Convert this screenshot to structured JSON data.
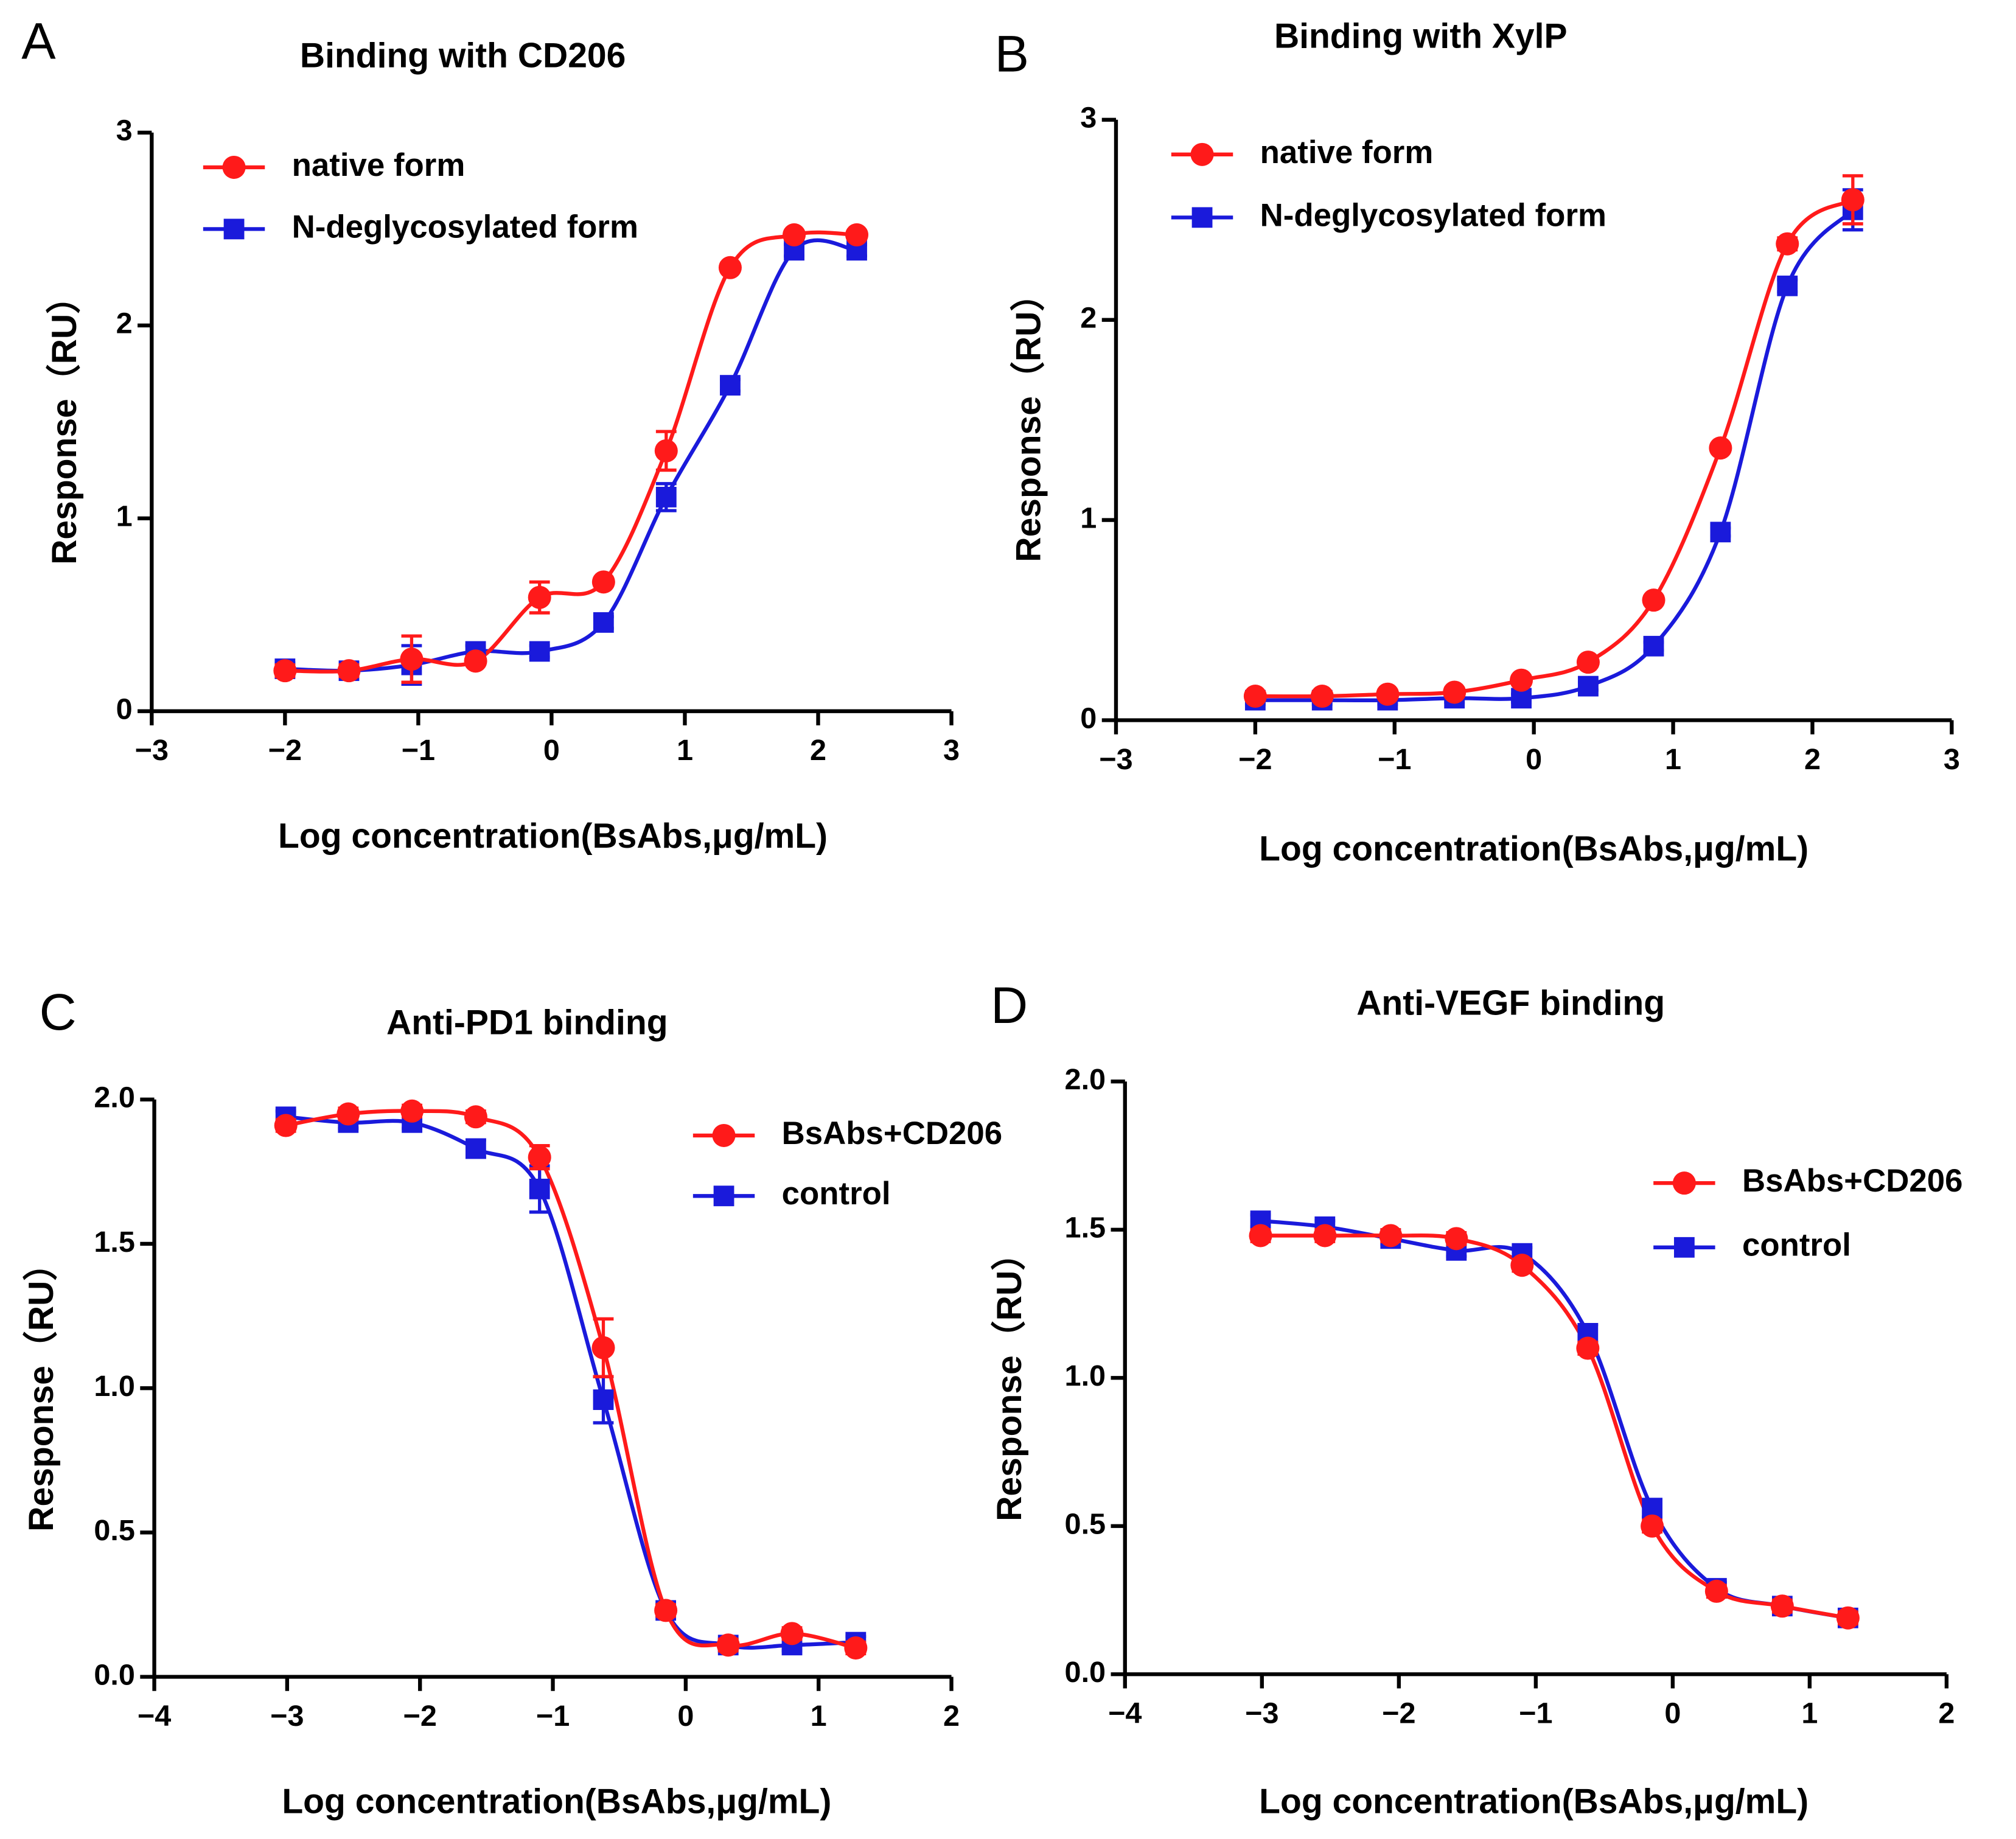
{
  "chart_data": [
    {
      "type": "line",
      "panel": "A",
      "title": "Binding with CD206",
      "x_label": "Log concentration(BsAbs,μg/mL)",
      "y_label": "Response（RU）",
      "x": [
        -2.0,
        -1.52,
        -1.05,
        -0.57,
        -0.09,
        0.39,
        0.86,
        1.34,
        1.82,
        2.29
      ],
      "series": [
        {
          "name": "native form",
          "color": "#ff1a1a",
          "marker": "circle",
          "values": [
            0.21,
            0.21,
            0.27,
            0.26,
            0.59,
            0.67,
            1.35,
            2.3,
            2.47,
            2.47
          ],
          "errors": [
            0.03,
            0.03,
            0.12,
            0.02,
            0.08,
            0.02,
            0.1,
            0.02,
            0.02,
            0.02
          ]
        },
        {
          "name": "N-deglycosylated form",
          "color": "#1a1adb",
          "marker": "square",
          "values": [
            0.22,
            0.21,
            0.24,
            0.31,
            0.31,
            0.46,
            1.11,
            1.69,
            2.39,
            2.39
          ],
          "errors": [
            0.03,
            0.03,
            0.1,
            0.03,
            0.03,
            0.03,
            0.07,
            0.03,
            0.03,
            0.03
          ]
        }
      ],
      "xlim": [
        -3,
        3
      ],
      "xticks": [
        {
          "value": -3,
          "label": "−3"
        },
        {
          "value": -2,
          "label": "−2"
        },
        {
          "value": -1,
          "label": "−1"
        },
        0,
        1,
        2,
        3
      ],
      "ylim": [
        0,
        3
      ],
      "yticks": [
        0,
        1,
        2,
        3
      ],
      "legend": "upper left"
    },
    {
      "type": "line",
      "panel": "B",
      "title": "Binding with XylP",
      "x_label": "Log concentration(BsAbs,μg/mL)",
      "y_label": "Response（RU）",
      "x": [
        -2.0,
        -1.52,
        -1.05,
        -0.57,
        -0.09,
        0.39,
        0.86,
        1.34,
        1.82,
        2.29
      ],
      "series": [
        {
          "name": "native form",
          "color": "#ff1a1a",
          "marker": "circle",
          "values": [
            0.12,
            0.12,
            0.13,
            0.14,
            0.2,
            0.29,
            0.6,
            1.36,
            2.38,
            2.6
          ],
          "errors": [
            0.02,
            0.02,
            0.02,
            0.02,
            0.02,
            0.02,
            0.02,
            0.02,
            0.03,
            0.12
          ]
        },
        {
          "name": "N-deglycosylated form",
          "color": "#1a1adb",
          "marker": "square",
          "values": [
            0.1,
            0.1,
            0.1,
            0.11,
            0.11,
            0.17,
            0.37,
            0.94,
            2.17,
            2.55
          ],
          "errors": [
            0.02,
            0.02,
            0.02,
            0.02,
            0.02,
            0.02,
            0.02,
            0.02,
            0.03,
            0.1
          ]
        }
      ],
      "xlim": [
        -3,
        3
      ],
      "xticks": [
        {
          "value": -3,
          "label": "−3"
        },
        {
          "value": -2,
          "label": "−2"
        },
        {
          "value": -1,
          "label": "−1"
        },
        0,
        1,
        2,
        3
      ],
      "ylim": [
        0,
        3
      ],
      "yticks": [
        0,
        1,
        2,
        3
      ],
      "legend": "upper left"
    },
    {
      "type": "line",
      "panel": "C",
      "title": "Anti-PD1 binding",
      "x_label": "Log concentration(BsAbs,μg/mL)",
      "y_label": "Response（RU）",
      "x": [
        -3.01,
        -2.54,
        -2.06,
        -1.58,
        -1.1,
        -0.62,
        -0.15,
        0.32,
        0.8,
        1.28
      ],
      "series": [
        {
          "name": "BsAbs+CD206",
          "color": "#ff1a1a",
          "marker": "circle",
          "values": [
            1.91,
            1.95,
            1.96,
            1.94,
            1.8,
            1.14,
            0.23,
            0.11,
            0.15,
            0.1
          ],
          "errors": [
            0.02,
            0.02,
            0.02,
            0.02,
            0.04,
            0.1,
            0.02,
            0.02,
            0.02,
            0.02
          ]
        },
        {
          "name": "control",
          "color": "#1a1adb",
          "marker": "square",
          "values": [
            1.94,
            1.92,
            1.92,
            1.83,
            1.69,
            0.96,
            0.23,
            0.11,
            0.11,
            0.12
          ],
          "errors": [
            0.02,
            0.02,
            0.02,
            0.03,
            0.08,
            0.08,
            0.02,
            0.02,
            0.02,
            0.02
          ]
        }
      ],
      "xlim": [
        -4,
        2
      ],
      "xticks": [
        {
          "value": -4,
          "label": "−4"
        },
        {
          "value": -3,
          "label": "−3"
        },
        {
          "value": -2,
          "label": "−2"
        },
        {
          "value": -1,
          "label": "−1"
        },
        0,
        1,
        2
      ],
      "ylim": [
        0,
        2
      ],
      "yticks": [
        {
          "value": 0,
          "label": "0.0"
        },
        0.5,
        {
          "value": 1,
          "label": "1.0"
        },
        1.5,
        {
          "value": 2,
          "label": "2.0"
        }
      ],
      "legend": "upper right"
    },
    {
      "type": "line",
      "panel": "D",
      "title": "Anti-VEGF binding",
      "x_label": "Log concentration(BsAbs,μg/mL)",
      "y_label": "Response（RU）",
      "x": [
        -3.01,
        -2.54,
        -2.06,
        -1.58,
        -1.1,
        -0.62,
        -0.15,
        0.32,
        0.8,
        1.28
      ],
      "series": [
        {
          "name": "BsAbs+CD206",
          "color": "#ff1a1a",
          "marker": "circle",
          "values": [
            1.48,
            1.48,
            1.48,
            1.47,
            1.38,
            1.1,
            0.5,
            0.28,
            0.23,
            0.19
          ],
          "errors": [
            0.02,
            0.02,
            0.02,
            0.02,
            0.02,
            0.02,
            0.02,
            0.02,
            0.02,
            0.02
          ]
        },
        {
          "name": "control",
          "color": "#1a1adb",
          "marker": "square",
          "values": [
            1.53,
            1.51,
            1.47,
            1.43,
            1.42,
            1.15,
            0.56,
            0.29,
            0.23,
            0.19
          ],
          "errors": [
            0.02,
            0.02,
            0.02,
            0.02,
            0.02,
            0.03,
            0.03,
            0.02,
            0.02,
            0.02
          ]
        }
      ],
      "xlim": [
        -4,
        2
      ],
      "xticks": [
        {
          "value": -4,
          "label": "−4"
        },
        {
          "value": -3,
          "label": "−3"
        },
        {
          "value": -2,
          "label": "−2"
        },
        {
          "value": -1,
          "label": "−1"
        },
        0,
        1,
        2
      ],
      "ylim": [
        0,
        2
      ],
      "yticks": [
        {
          "value": 0,
          "label": "0.0"
        },
        0.5,
        {
          "value": 1,
          "label": "1.0"
        },
        1.5,
        {
          "value": 2,
          "label": "2.0"
        }
      ],
      "legend": "upper right"
    }
  ]
}
